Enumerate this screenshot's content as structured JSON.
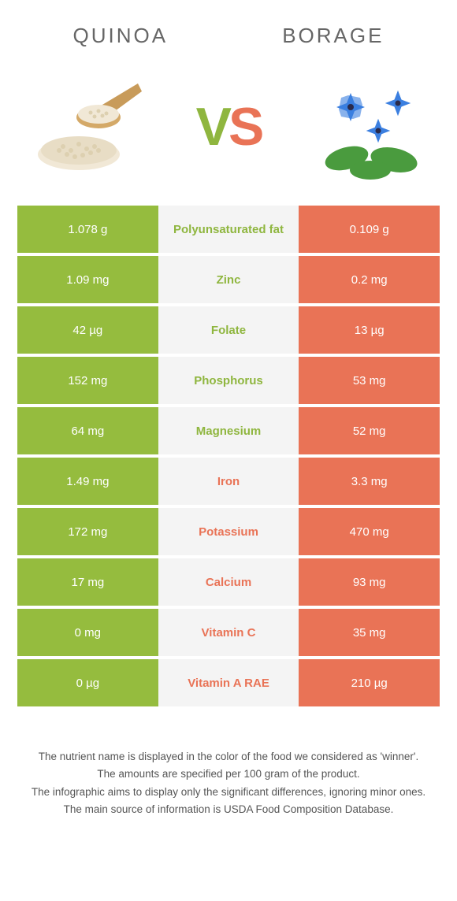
{
  "header": {
    "left_title": "Quinoa",
    "right_title": "Borage"
  },
  "vs": {
    "v": "V",
    "s": "S"
  },
  "colors": {
    "green": "#95bc3e",
    "orange": "#e97356",
    "mid_bg": "#f4f4f4",
    "text_green": "#8fb63f",
    "text_orange": "#e97356"
  },
  "rows": [
    {
      "left": "1.078 g",
      "label": "Polyunsaturated fat",
      "right": "0.109 g",
      "winner": "left"
    },
    {
      "left": "1.09 mg",
      "label": "Zinc",
      "right": "0.2 mg",
      "winner": "left"
    },
    {
      "left": "42 µg",
      "label": "Folate",
      "right": "13 µg",
      "winner": "left"
    },
    {
      "left": "152 mg",
      "label": "Phosphorus",
      "right": "53 mg",
      "winner": "left"
    },
    {
      "left": "64 mg",
      "label": "Magnesium",
      "right": "52 mg",
      "winner": "left"
    },
    {
      "left": "1.49 mg",
      "label": "Iron",
      "right": "3.3 mg",
      "winner": "right"
    },
    {
      "left": "172 mg",
      "label": "Potassium",
      "right": "470 mg",
      "winner": "right"
    },
    {
      "left": "17 mg",
      "label": "Calcium",
      "right": "93 mg",
      "winner": "right"
    },
    {
      "left": "0 mg",
      "label": "Vitamin C",
      "right": "35 mg",
      "winner": "right"
    },
    {
      "left": "0 µg",
      "label": "Vitamin A RAE",
      "right": "210 µg",
      "winner": "right"
    }
  ],
  "footer": {
    "line1": "The nutrient name is displayed in the color of the food we considered as 'winner'.",
    "line2": "The amounts are specified per 100 gram of the product.",
    "line3": "The infographic aims to display only the significant differences, ignoring minor ones.",
    "line4": "The main source of information is USDA Food Composition Database."
  }
}
